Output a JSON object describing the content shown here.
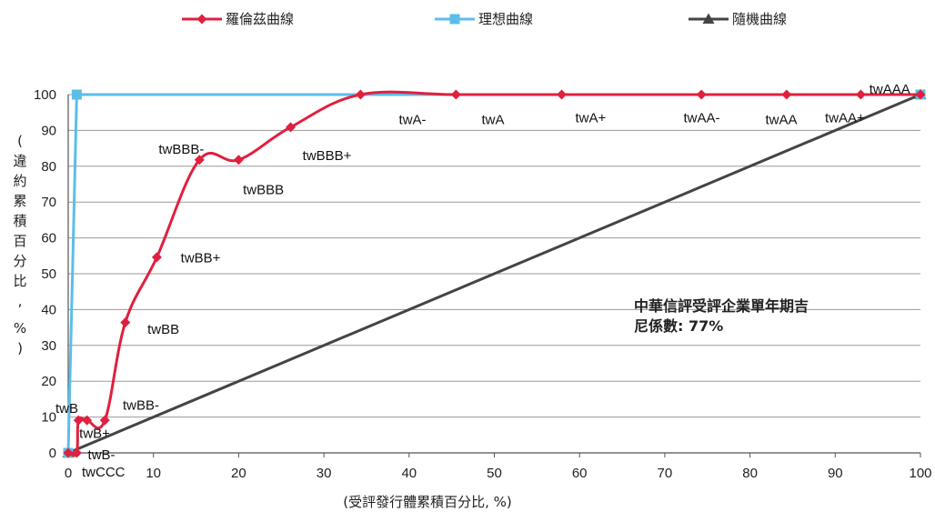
{
  "chart_data": {
    "type": "line",
    "title": "",
    "xlabel": "(受評發行體累積百分比, %)",
    "ylabel": "(違約累積百分比, %)",
    "xlim": [
      0,
      100
    ],
    "ylim": [
      0,
      100
    ],
    "xticks": [
      0,
      10,
      20,
      30,
      40,
      50,
      60,
      70,
      80,
      90,
      100
    ],
    "yticks": [
      0,
      10,
      20,
      30,
      40,
      50,
      60,
      70,
      80,
      90,
      100
    ],
    "grid": "horizontal",
    "legend_position": "top",
    "series": [
      {
        "name": "羅倫茲曲線",
        "color": "#E0203F",
        "marker": "diamond",
        "smooth": true,
        "points": [
          {
            "x": 0,
            "y": 0
          },
          {
            "x": 1.0,
            "y": 0
          },
          {
            "x": 1.2,
            "y": 9.1
          },
          {
            "x": 2.2,
            "y": 9.1
          },
          {
            "x": 4.3,
            "y": 9.1
          },
          {
            "x": 6.7,
            "y": 36.4
          },
          {
            "x": 10.4,
            "y": 54.6
          },
          {
            "x": 15.4,
            "y": 81.8
          },
          {
            "x": 20.0,
            "y": 81.8
          },
          {
            "x": 26.1,
            "y": 90.9
          },
          {
            "x": 34.3,
            "y": 100
          },
          {
            "x": 45.5,
            "y": 100
          },
          {
            "x": 57.9,
            "y": 100
          },
          {
            "x": 74.3,
            "y": 100
          },
          {
            "x": 84.3,
            "y": 100
          },
          {
            "x": 93.0,
            "y": 100
          },
          {
            "x": 100,
            "y": 100
          }
        ]
      },
      {
        "name": "理想曲線",
        "color": "#5BBEE8",
        "marker": "square",
        "smooth": false,
        "points": [
          {
            "x": 0,
            "y": 0
          },
          {
            "x": 1.0,
            "y": 100
          },
          {
            "x": 100,
            "y": 100
          }
        ]
      },
      {
        "name": "隨機曲線",
        "color": "#444444",
        "marker": "triangle",
        "smooth": false,
        "points": [
          {
            "x": 0,
            "y": 0
          },
          {
            "x": 100,
            "y": 100
          }
        ]
      }
    ],
    "category_labels": [
      {
        "text": "twB",
        "x": -1.5,
        "y": 12.5
      },
      {
        "text": "twB+",
        "x": 1.3,
        "y": 5.5
      },
      {
        "text": "twB-",
        "x": 2.3,
        "y": -0.5
      },
      {
        "text": "twCCC",
        "x": 1.6,
        "y": -5.3
      },
      {
        "text": "twBB-",
        "x": 6.4,
        "y": 13.3
      },
      {
        "text": "twBB",
        "x": 9.3,
        "y": 34.5
      },
      {
        "text": "twBB+",
        "x": 13.2,
        "y": 54.5
      },
      {
        "text": "twBBB-",
        "x": 10.6,
        "y": 84.8
      },
      {
        "text": "twBBB",
        "x": 20.5,
        "y": 73.5
      },
      {
        "text": "twBBB+",
        "x": 27.5,
        "y": 83.0
      },
      {
        "text": "twA-",
        "x": 38.8,
        "y": 93.0
      },
      {
        "text": "twA",
        "x": 48.5,
        "y": 93.0
      },
      {
        "text": "twA+",
        "x": 59.5,
        "y": 93.5
      },
      {
        "text": "twAA-",
        "x": 72.2,
        "y": 93.5
      },
      {
        "text": "twAA",
        "x": 81.8,
        "y": 93.0
      },
      {
        "text": "twAA+",
        "x": 88.8,
        "y": 93.5
      },
      {
        "text": "twAAA",
        "x": 94.0,
        "y": 101.5
      }
    ]
  },
  "annotation": {
    "line1": "中華信評受評企業單年期吉",
    "line2": "尼係數: 77%"
  }
}
